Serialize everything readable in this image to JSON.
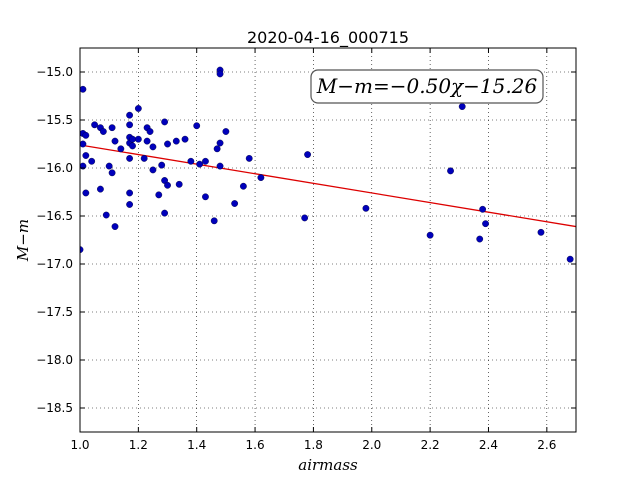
{
  "chart_data": {
    "type": "scatter",
    "title": "2020-04-16_000715",
    "xlabel": "airmass",
    "ylabel": "M−m",
    "xlim": [
      1.0,
      2.7
    ],
    "ylim": [
      -18.75,
      -14.75
    ],
    "y_inverted": true,
    "xticks": [
      1.0,
      1.2,
      1.4,
      1.6,
      1.8,
      2.0,
      2.2,
      2.4,
      2.6
    ],
    "xtick_labels": [
      "1.0",
      "1.2",
      "1.4",
      "1.6",
      "1.8",
      "2.0",
      "2.2",
      "2.4",
      "2.6"
    ],
    "yticks": [
      -15.0,
      -15.5,
      -16.0,
      -16.5,
      -17.0,
      -17.5,
      -18.0,
      -18.5
    ],
    "ytick_labels": [
      "−15.0",
      "−15.5",
      "−16.0",
      "−16.5",
      "−17.0",
      "−17.5",
      "−18.0",
      "−18.5"
    ],
    "grid": true,
    "annotation": "M−m=−0.50χ−15.26",
    "annotation_position": "top-right",
    "point_color": "#0000bb",
    "fit_color": "#dd0000",
    "fit": {
      "slope": -0.5,
      "intercept": -15.26
    },
    "points": [
      {
        "x": 1.0,
        "y": -16.85
      },
      {
        "x": 1.01,
        "y": -15.18
      },
      {
        "x": 1.01,
        "y": -15.64
      },
      {
        "x": 1.01,
        "y": -15.75
      },
      {
        "x": 1.01,
        "y": -15.98
      },
      {
        "x": 1.02,
        "y": -16.26
      },
      {
        "x": 1.02,
        "y": -15.66
      },
      {
        "x": 1.02,
        "y": -15.87
      },
      {
        "x": 1.04,
        "y": -15.93
      },
      {
        "x": 1.05,
        "y": -15.55
      },
      {
        "x": 1.07,
        "y": -16.22
      },
      {
        "x": 1.07,
        "y": -15.58
      },
      {
        "x": 1.08,
        "y": -15.62
      },
      {
        "x": 1.09,
        "y": -16.49
      },
      {
        "x": 1.1,
        "y": -15.98
      },
      {
        "x": 1.11,
        "y": -16.05
      },
      {
        "x": 1.11,
        "y": -15.58
      },
      {
        "x": 1.12,
        "y": -15.72
      },
      {
        "x": 1.12,
        "y": -16.61
      },
      {
        "x": 1.14,
        "y": -15.8
      },
      {
        "x": 1.17,
        "y": -15.45
      },
      {
        "x": 1.17,
        "y": -15.55
      },
      {
        "x": 1.17,
        "y": -15.68
      },
      {
        "x": 1.17,
        "y": -15.74
      },
      {
        "x": 1.18,
        "y": -15.7
      },
      {
        "x": 1.18,
        "y": -15.77
      },
      {
        "x": 1.17,
        "y": -15.9
      },
      {
        "x": 1.17,
        "y": -16.26
      },
      {
        "x": 1.17,
        "y": -16.38
      },
      {
        "x": 1.2,
        "y": -15.38
      },
      {
        "x": 1.2,
        "y": -15.7
      },
      {
        "x": 1.22,
        "y": -15.9
      },
      {
        "x": 1.23,
        "y": -15.72
      },
      {
        "x": 1.23,
        "y": -15.58
      },
      {
        "x": 1.24,
        "y": -15.62
      },
      {
        "x": 1.25,
        "y": -15.78
      },
      {
        "x": 1.25,
        "y": -16.02
      },
      {
        "x": 1.27,
        "y": -16.28
      },
      {
        "x": 1.28,
        "y": -15.97
      },
      {
        "x": 1.29,
        "y": -15.52
      },
      {
        "x": 1.29,
        "y": -16.13
      },
      {
        "x": 1.29,
        "y": -16.47
      },
      {
        "x": 1.3,
        "y": -16.18
      },
      {
        "x": 1.3,
        "y": -15.75
      },
      {
        "x": 1.33,
        "y": -15.72
      },
      {
        "x": 1.34,
        "y": -16.17
      },
      {
        "x": 1.36,
        "y": -15.7
      },
      {
        "x": 1.38,
        "y": -15.93
      },
      {
        "x": 1.4,
        "y": -15.56
      },
      {
        "x": 1.41,
        "y": -15.96
      },
      {
        "x": 1.43,
        "y": -16.3
      },
      {
        "x": 1.43,
        "y": -15.93
      },
      {
        "x": 1.46,
        "y": -16.55
      },
      {
        "x": 1.47,
        "y": -15.8
      },
      {
        "x": 1.48,
        "y": -15.98
      },
      {
        "x": 1.48,
        "y": -15.74
      },
      {
        "x": 1.48,
        "y": -14.98
      },
      {
        "x": 1.48,
        "y": -15.02
      },
      {
        "x": 1.5,
        "y": -15.62
      },
      {
        "x": 1.53,
        "y": -16.37
      },
      {
        "x": 1.56,
        "y": -16.19
      },
      {
        "x": 1.58,
        "y": -15.9
      },
      {
        "x": 1.62,
        "y": -16.1
      },
      {
        "x": 1.78,
        "y": -15.86
      },
      {
        "x": 1.77,
        "y": -16.52
      },
      {
        "x": 1.98,
        "y": -16.42
      },
      {
        "x": 2.2,
        "y": -16.7
      },
      {
        "x": 2.27,
        "y": -16.03
      },
      {
        "x": 2.31,
        "y": -15.36
      },
      {
        "x": 2.37,
        "y": -16.74
      },
      {
        "x": 2.38,
        "y": -16.43
      },
      {
        "x": 2.39,
        "y": -16.58
      },
      {
        "x": 2.58,
        "y": -16.67
      },
      {
        "x": 2.68,
        "y": -16.95
      }
    ]
  }
}
